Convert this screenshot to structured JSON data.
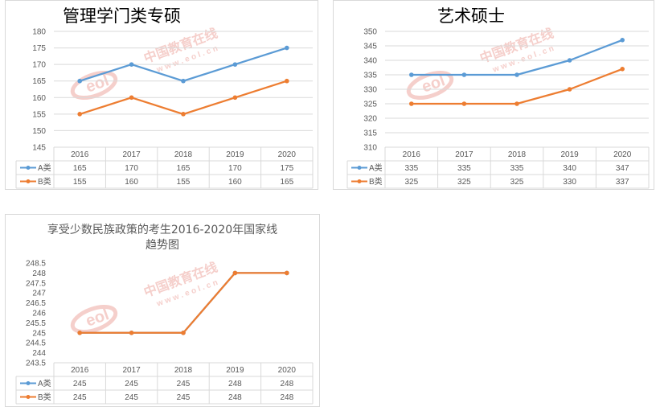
{
  "chart_data": [
    {
      "type": "line",
      "title": "管理学门类专硕",
      "title_note": "title partially hidden in original; only this part is visible",
      "categories": [
        "2016",
        "2017",
        "2018",
        "2019",
        "2020"
      ],
      "ylim": [
        145,
        180
      ],
      "ytick_step": 5,
      "yticks": [
        "180",
        "175",
        "170",
        "165",
        "160",
        "155",
        "150",
        "145"
      ],
      "grid": true,
      "data_table": true,
      "series": [
        {
          "name": "A类",
          "values": [
            165,
            170,
            165,
            170,
            175
          ],
          "color": "#5b9bd5"
        },
        {
          "name": "B类",
          "values": [
            155,
            160,
            155,
            160,
            165
          ],
          "color": "#ed7d31"
        }
      ]
    },
    {
      "type": "line",
      "title": "艺术硕士",
      "title_note": "title partially hidden in original; only this part is visible",
      "categories": [
        "2016",
        "2017",
        "2018",
        "2019",
        "2020"
      ],
      "ylim": [
        310,
        350
      ],
      "ytick_step": 5,
      "yticks": [
        "350",
        "345",
        "340",
        "335",
        "330",
        "325",
        "320",
        "315",
        "310"
      ],
      "grid": true,
      "data_table": true,
      "series": [
        {
          "name": "A类",
          "values": [
            335,
            335,
            335,
            340,
            347
          ],
          "color": "#5b9bd5"
        },
        {
          "name": "B类",
          "values": [
            325,
            325,
            325,
            330,
            337
          ],
          "color": "#ed7d31"
        }
      ]
    },
    {
      "type": "line",
      "title": "享受少数民族政策的考生2016-2020年国家线趋势图",
      "title_lines": [
        "享受少数民族政策的考生2016-2020年国家线",
        "趋势图"
      ],
      "categories": [
        "2016",
        "2017",
        "2018",
        "2019",
        "2020"
      ],
      "ylim": [
        243.5,
        248.5
      ],
      "ytick_step": 0.5,
      "yticks": [
        "248.5",
        "248",
        "247.5",
        "247",
        "246.5",
        "246",
        "245.5",
        "245",
        "244.5",
        "244",
        "243.5"
      ],
      "grid": false,
      "data_table": true,
      "series": [
        {
          "name": "A类",
          "values": [
            245,
            245,
            245,
            248,
            248
          ],
          "color": "#5b9bd5"
        },
        {
          "name": "B类",
          "values": [
            245,
            245,
            245,
            248,
            248
          ],
          "color": "#ed7d31"
        }
      ]
    }
  ],
  "watermark": {
    "brand": "eol",
    "name": "中国教育在线",
    "url": "w w w . e o l . c n"
  },
  "colors": {
    "grid": "#d9d9d9",
    "axis_text": "#595959",
    "a_series": "#5b9bd5",
    "b_series": "#ed7d31",
    "watermark": "#f4c7c3"
  }
}
